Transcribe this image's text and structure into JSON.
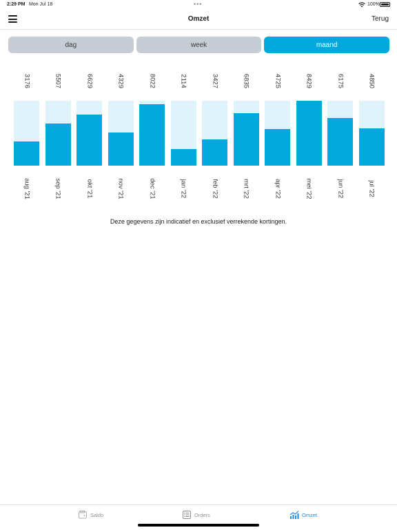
{
  "status_bar": {
    "time": "2:29 PM",
    "date": "Mon Jul 18",
    "battery": "100%"
  },
  "navbar": {
    "title": "Omzet",
    "back_label": "Terug"
  },
  "segments": [
    {
      "label": "dag",
      "active": false
    },
    {
      "label": "week",
      "active": false
    },
    {
      "label": "maand",
      "active": true
    }
  ],
  "chart_data": {
    "type": "bar",
    "categories": [
      "aug '21",
      "sep '21",
      "okt '21",
      "nov '21",
      "dec '21",
      "jan '22",
      "feb '22",
      "mrt '22",
      "apr '22",
      "mei '22",
      "jun '22",
      "jul '22"
    ],
    "values": [
      3176,
      5507,
      6629,
      4329,
      8022,
      2114,
      3427,
      6835,
      4725,
      8429,
      6175,
      4850
    ],
    "ylim": [
      0,
      8429
    ],
    "colors": {
      "fill": "#00a9dd",
      "track": "#dff3fb"
    }
  },
  "footnote": "Deze gegevens zijn indicatief en exclusief verrekende kortingen.",
  "tabbar": [
    {
      "label": "Saldo",
      "icon": "wallet-icon",
      "active": false
    },
    {
      "label": "Orders",
      "icon": "list-icon",
      "active": false
    },
    {
      "label": "Omzet",
      "icon": "chart-icon",
      "active": true
    }
  ]
}
